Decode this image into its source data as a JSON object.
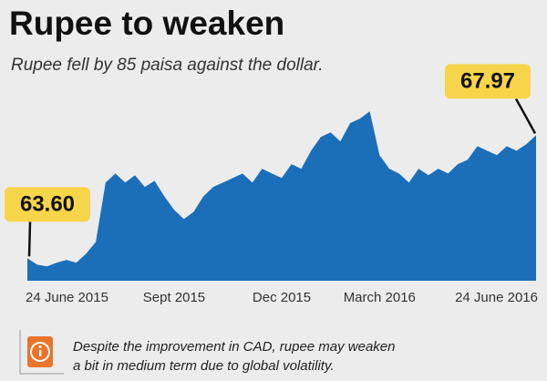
{
  "chart_data": {
    "type": "area",
    "title": "Rupee to weaken",
    "subtitle": "Rupee fell by 85 paisa against the dollar.",
    "categories": [
      "24 June 2015",
      null,
      null,
      null,
      null,
      null,
      null,
      null,
      null,
      null,
      null,
      null,
      null,
      null,
      null,
      "Sept 2015",
      null,
      null,
      null,
      null,
      null,
      null,
      null,
      null,
      null,
      null,
      "Dec 2015",
      null,
      null,
      null,
      null,
      null,
      null,
      null,
      null,
      null,
      "March 2016",
      null,
      null,
      null,
      null,
      null,
      null,
      null,
      null,
      null,
      null,
      null,
      null,
      null,
      null,
      null,
      "24 June 2016"
    ],
    "values": [
      63.6,
      63.37,
      63.31,
      63.44,
      63.54,
      63.44,
      63.76,
      64.18,
      66.29,
      66.61,
      66.29,
      66.55,
      66.13,
      66.35,
      65.8,
      65.32,
      64.99,
      65.25,
      65.8,
      66.13,
      66.29,
      66.45,
      66.61,
      66.29,
      66.78,
      66.61,
      66.45,
      66.94,
      66.78,
      67.42,
      67.91,
      68.07,
      67.75,
      68.4,
      68.56,
      68.82,
      67.26,
      66.78,
      66.61,
      66.29,
      66.78,
      66.55,
      66.78,
      66.61,
      66.94,
      67.1,
      67.58,
      67.42,
      67.26,
      67.58,
      67.42,
      67.65,
      67.97
    ],
    "value_labels": [
      "63.60",
      null,
      null,
      null,
      null,
      null,
      null,
      null,
      null,
      null,
      null,
      null,
      null,
      null,
      null,
      null,
      null,
      null,
      null,
      null,
      null,
      null,
      null,
      null,
      null,
      null,
      null,
      null,
      null,
      null,
      null,
      null,
      null,
      null,
      null,
      null,
      null,
      null,
      null,
      null,
      null,
      null,
      null,
      null,
      null,
      null,
      null,
      null,
      null,
      null,
      null,
      null,
      "67.97"
    ],
    "color": "#1b6fb9",
    "ylim": [
      62.8,
      69.6
    ],
    "grid": false,
    "note": [
      "Despite the improvement in CAD, rupee may weaken",
      "a bit in medium term due to global volatility."
    ]
  }
}
